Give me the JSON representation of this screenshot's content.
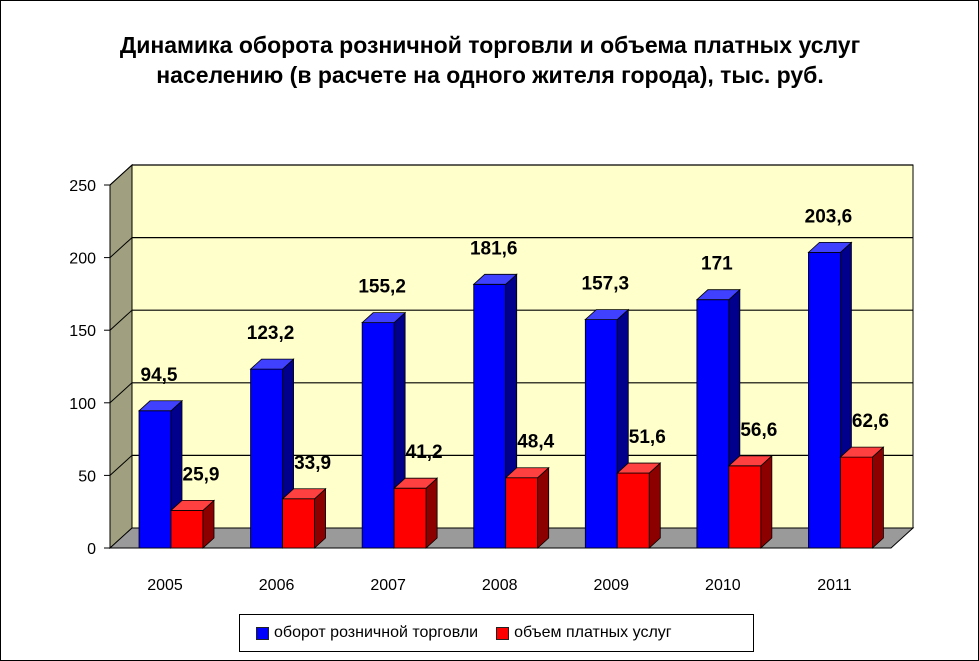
{
  "colors": {
    "series1": "#0000ff",
    "series2": "#ff0000",
    "wall": "#ffffcc",
    "side_wall": "#a0a080",
    "floor": "#9a9a9a"
  },
  "chart_data": {
    "type": "bar",
    "title": "Динамика оборота розничной торговли и объема платных услуг населению (в расчете на одного жителя города), тыс. руб.",
    "categories": [
      "2005",
      "2006",
      "2007",
      "2008",
      "2009",
      "2010",
      "2011"
    ],
    "series": [
      {
        "name": "оборот розничной торговли",
        "values": [
          94.5,
          123.2,
          155.2,
          181.6,
          157.3,
          171,
          203.6
        ],
        "labels": [
          "94,5",
          "123,2",
          "155,2",
          "181,6",
          "157,3",
          "171",
          "203,6"
        ]
      },
      {
        "name": "объем платных услуг",
        "values": [
          25.9,
          33.9,
          41.2,
          48.4,
          51.6,
          56.6,
          62.6
        ],
        "labels": [
          "25,9",
          "33,9",
          "41,2",
          "48,4",
          "51,6",
          "56,6",
          "62,6"
        ]
      }
    ],
    "ylim": [
      0,
      250
    ],
    "yticks": [
      "0",
      "50",
      "100",
      "150",
      "200",
      "250"
    ],
    "grid": true,
    "legend_position": "bottom",
    "style": "3d-clustered-column"
  }
}
